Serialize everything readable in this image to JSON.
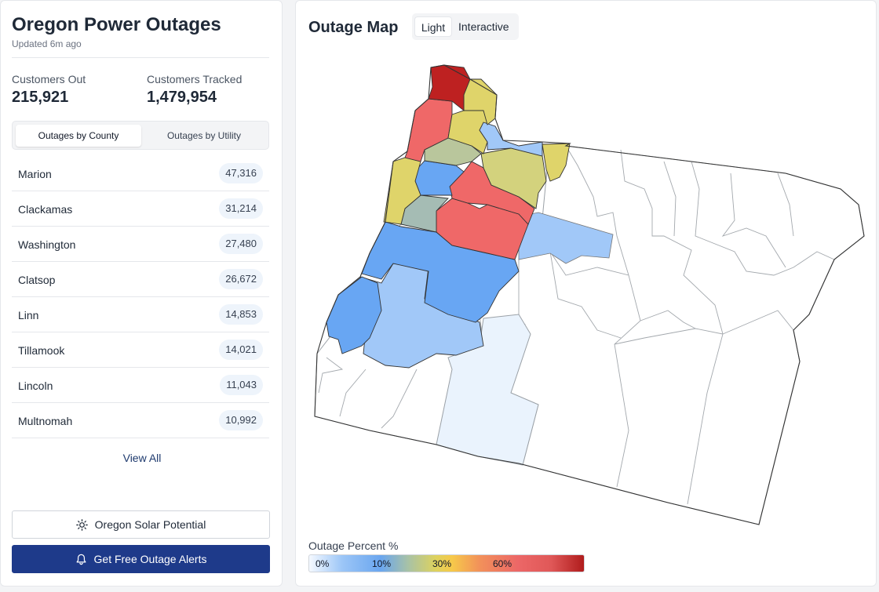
{
  "sidebar": {
    "title": "Oregon Power Outages",
    "updated": "Updated 6m ago",
    "customers_out_label": "Customers Out",
    "customers_out_value": "215,921",
    "customers_tracked_label": "Customers Tracked",
    "customers_tracked_value": "1,479,954",
    "tabs": [
      {
        "label": "Outages by County",
        "active": true
      },
      {
        "label": "Outages by Utility",
        "active": false
      }
    ],
    "counties": [
      {
        "name": "Marion",
        "count": "47,316"
      },
      {
        "name": "Clackamas",
        "count": "31,214"
      },
      {
        "name": "Washington",
        "count": "27,480"
      },
      {
        "name": "Clatsop",
        "count": "26,672"
      },
      {
        "name": "Linn",
        "count": "14,853"
      },
      {
        "name": "Tillamook",
        "count": "14,021"
      },
      {
        "name": "Lincoln",
        "count": "11,043"
      },
      {
        "name": "Multnomah",
        "count": "10,992"
      }
    ],
    "view_all": "View All",
    "solar_button": "Oregon Solar Potential",
    "solar_icon": "sun-icon",
    "alerts_button": "Get Free Outage Alerts",
    "alerts_icon": "bell-icon"
  },
  "map": {
    "title": "Outage Map",
    "view_modes": [
      {
        "label": "Light",
        "active": true
      },
      {
        "label": "Interactive",
        "active": false
      }
    ],
    "legend_title": "Outage Percent %",
    "legend_ticks": [
      "0%",
      "10%",
      "30%",
      "60%"
    ],
    "colors": {
      "dark_red": "#be2121",
      "red": "#ef6868",
      "yellow": "#dfd46a",
      "olive": "#d3d27d",
      "sage": "#b9c69c",
      "slate": "#a5bcb4",
      "blue": "#68a6f3",
      "light_blue": "#a1c8f8",
      "pale_blue": "#eaf3fd",
      "empty": "#ffffff",
      "brand_navy": "#1e3a8a"
    }
  }
}
